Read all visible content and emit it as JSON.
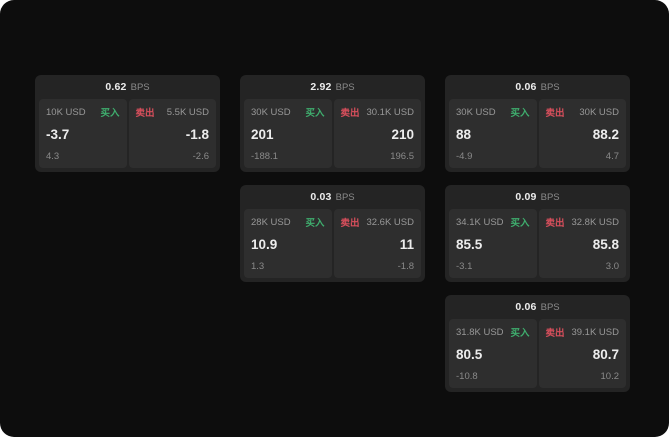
{
  "labels": {
    "bps": "BPS",
    "buy": "买入",
    "sell": "卖出"
  },
  "colors": {
    "buy": "#3fae6e",
    "sell": "#d94f5c"
  },
  "cards": [
    {
      "col": 1,
      "row": 1,
      "bps": "0.62",
      "buy": {
        "size": "10K USD",
        "price": "-3.7",
        "delta": "4.3"
      },
      "sell": {
        "size": "5.5K USD",
        "price": "-1.8",
        "delta": "-2.6"
      }
    },
    {
      "col": 2,
      "row": 1,
      "bps": "2.92",
      "buy": {
        "size": "30K USD",
        "price": "201",
        "delta": "-188.1"
      },
      "sell": {
        "size": "30.1K USD",
        "price": "210",
        "delta": "196.5"
      }
    },
    {
      "col": 3,
      "row": 1,
      "bps": "0.06",
      "buy": {
        "size": "30K USD",
        "price": "88",
        "delta": "-4.9"
      },
      "sell": {
        "size": "30K USD",
        "price": "88.2",
        "delta": "4.7"
      }
    },
    {
      "col": 2,
      "row": 2,
      "bps": "0.03",
      "buy": {
        "size": "28K USD",
        "price": "10.9",
        "delta": "1.3"
      },
      "sell": {
        "size": "32.6K USD",
        "price": "11",
        "delta": "-1.8"
      }
    },
    {
      "col": 3,
      "row": 2,
      "bps": "0.09",
      "buy": {
        "size": "34.1K USD",
        "price": "85.5",
        "delta": "-3.1"
      },
      "sell": {
        "size": "32.8K USD",
        "price": "85.8",
        "delta": "3.0"
      }
    },
    {
      "col": 3,
      "row": 3,
      "bps": "0.06",
      "buy": {
        "size": "31.8K USD",
        "price": "80.5",
        "delta": "-10.8"
      },
      "sell": {
        "size": "39.1K USD",
        "price": "80.7",
        "delta": "10.2"
      }
    }
  ]
}
